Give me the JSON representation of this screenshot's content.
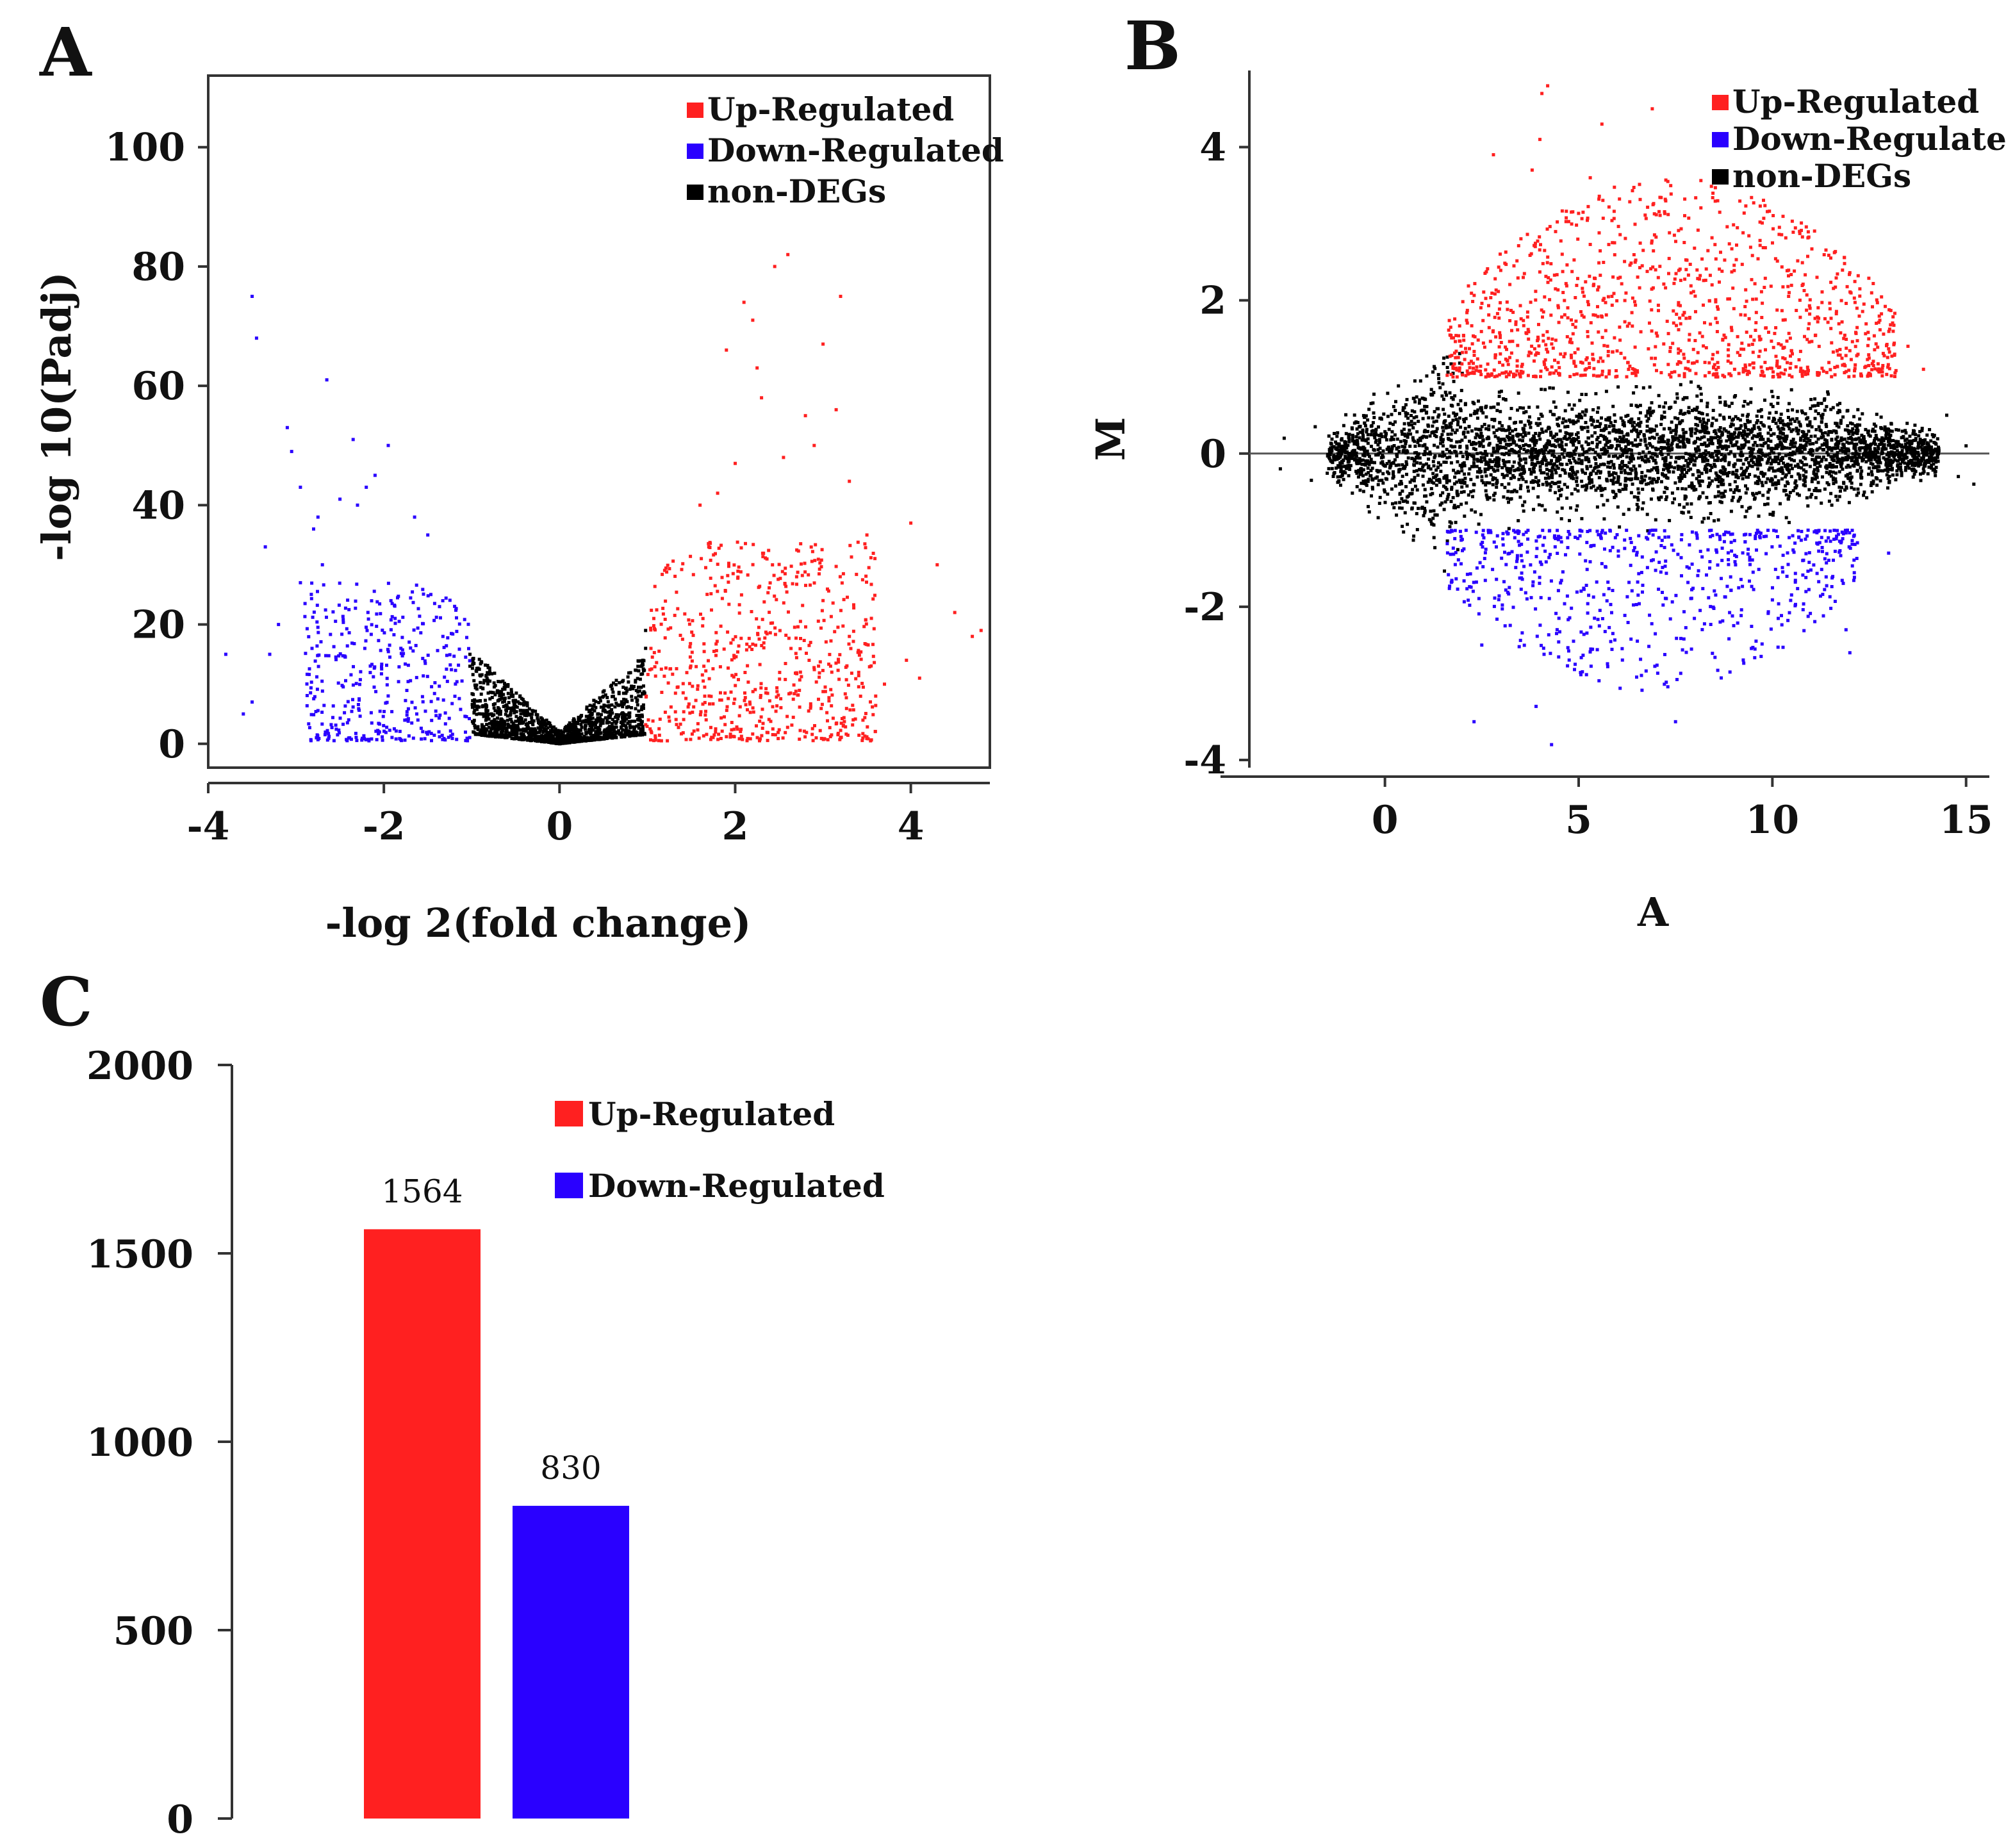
{
  "colors": {
    "up": "#ff2020",
    "down": "#2a00ff",
    "non": "#000000",
    "axis": "#333333"
  },
  "chart_data": [
    {
      "panel": "A",
      "type": "scatter",
      "title": "",
      "xlabel": "-log 2(fold change)",
      "ylabel": "-log 10(Padj)",
      "xlim": [
        -4.0,
        4.9
      ],
      "ylim": [
        -4,
        112
      ],
      "xticks": [
        -4,
        -2,
        0,
        2,
        4
      ],
      "xtick_labels": [
        "-4",
        "-2",
        "0",
        "2",
        "4"
      ],
      "yticks": [
        0,
        20,
        40,
        60,
        80,
        100
      ],
      "ytick_labels": [
        "0",
        "20",
        "40",
        "60",
        "80",
        "100"
      ],
      "legend": [
        {
          "label": "Up-Regulated",
          "color": "#ff2020"
        },
        {
          "label": "Down-Regulated",
          "color": "#2a00ff"
        },
        {
          "label": "non-DEGs",
          "color": "#000000"
        }
      ],
      "legend_position": "top-right",
      "series": [
        {
          "name": "Up-Regulated",
          "color": "#ff2020",
          "points": [
            [
              2.6,
              82
            ],
            [
              2.45,
              80
            ],
            [
              3.2,
              75
            ],
            [
              2.1,
              74
            ],
            [
              2.2,
              71
            ],
            [
              1.9,
              66
            ],
            [
              2.25,
              63
            ],
            [
              3.0,
              67
            ],
            [
              2.3,
              58
            ],
            [
              2.8,
              55
            ],
            [
              3.15,
              56
            ],
            [
              2.9,
              50
            ],
            [
              2.55,
              48
            ],
            [
              3.3,
              44
            ],
            [
              2.0,
              47
            ],
            [
              1.8,
              42
            ],
            [
              4.0,
              37
            ],
            [
              3.5,
              35
            ],
            [
              4.3,
              30
            ],
            [
              4.5,
              22
            ],
            [
              4.8,
              19
            ],
            [
              4.7,
              18
            ],
            [
              3.95,
              14
            ],
            [
              4.1,
              11
            ],
            [
              3.7,
              10
            ],
            [
              3.6,
              8
            ],
            [
              3.0,
              24
            ],
            [
              2.7,
              28
            ],
            [
              1.6,
              40
            ],
            [
              1.7,
              33
            ],
            [
              3.3,
              18
            ],
            [
              3.1,
              12
            ]
          ],
          "cloud": {
            "x": [
              0.98,
              3.6
            ],
            "y": [
              0.5,
              34
            ],
            "count": 620,
            "seed": 11
          }
        },
        {
          "name": "Down-Regulated",
          "color": "#2a00ff",
          "points": [
            [
              -3.5,
              75
            ],
            [
              -3.45,
              68
            ],
            [
              -2.65,
              61
            ],
            [
              -3.1,
              53
            ],
            [
              -3.05,
              49
            ],
            [
              -2.95,
              43
            ],
            [
              -2.35,
              51
            ],
            [
              -1.95,
              50
            ],
            [
              -2.1,
              45
            ],
            [
              -2.2,
              43
            ],
            [
              -2.3,
              40
            ],
            [
              -2.5,
              41
            ],
            [
              -2.75,
              38
            ],
            [
              -2.8,
              36
            ],
            [
              -1.65,
              38
            ],
            [
              -1.5,
              35
            ],
            [
              -3.35,
              33
            ],
            [
              -3.8,
              15
            ],
            [
              -3.5,
              7
            ],
            [
              -3.6,
              5
            ],
            [
              -2.95,
              27
            ],
            [
              -2.7,
              30
            ],
            [
              -3.2,
              20
            ],
            [
              -3.3,
              15
            ]
          ],
          "cloud": {
            "x": [
              -2.9,
              -1.02
            ],
            "y": [
              0.5,
              27
            ],
            "count": 380,
            "seed": 23
          }
        },
        {
          "name": "non-DEGs",
          "color": "#000000",
          "points": [
            [
              -1.02,
              15
            ],
            [
              -1.02,
              13
            ],
            [
              0.98,
              19
            ],
            [
              0.98,
              16
            ],
            [
              0.95,
              14
            ]
          ],
          "cloud": {
            "x": [
              -1.0,
              0.97
            ],
            "y": [
              0,
              16
            ],
            "count": 1400,
            "seed": 5,
            "shape": "v"
          }
        }
      ]
    },
    {
      "panel": "B",
      "type": "scatter",
      "title": "",
      "xlabel": "A",
      "ylabel": "M",
      "xlim": [
        -3.5,
        15.6
      ],
      "ylim": [
        -4.1,
        5.0
      ],
      "xticks": [
        0,
        5,
        10,
        15
      ],
      "xtick_labels": [
        "0",
        "5",
        "10",
        "15"
      ],
      "yticks": [
        -4,
        -2,
        0,
        2,
        4
      ],
      "ytick_labels": [
        "-4",
        "-2",
        "0",
        "2",
        "4"
      ],
      "hline": 0,
      "legend": [
        {
          "label": "Up-Regulated",
          "color": "#ff2020"
        },
        {
          "label": "Down-Regulated",
          "color": "#2a00ff"
        },
        {
          "label": "non-DEGs",
          "color": "#000000"
        }
      ],
      "legend_position": "top-right",
      "series": [
        {
          "name": "Up-Regulated",
          "color": "#ff2020",
          "points": [
            [
              4.2,
              4.8
            ],
            [
              4.05,
              4.7
            ],
            [
              5.6,
              4.3
            ],
            [
              4.0,
              4.1
            ],
            [
              6.9,
              4.5
            ],
            [
              3.8,
              3.7
            ],
            [
              2.8,
              3.9
            ],
            [
              5.3,
              3.6
            ],
            [
              10.7,
              2.9
            ],
            [
              13.5,
              1.4
            ],
            [
              13.9,
              1.1
            ]
          ],
          "cloud": {
            "x": [
              1.6,
              13.2
            ],
            "y": [
              1.0,
              3.6
            ],
            "count": 1100,
            "seed": 31,
            "shape": "mound"
          }
        },
        {
          "name": "Down-Regulated",
          "color": "#2a00ff",
          "points": [
            [
              4.3,
              -3.8
            ],
            [
              2.3,
              -3.5
            ],
            [
              7.5,
              -3.5
            ],
            [
              3.9,
              -3.3
            ],
            [
              12.0,
              -2.6
            ],
            [
              11.9,
              -2.3
            ],
            [
              2.5,
              -2.5
            ],
            [
              13.0,
              -1.3
            ]
          ],
          "cloud": {
            "x": [
              1.6,
              12.2
            ],
            "y": [
              -3.1,
              -1.0
            ],
            "count": 650,
            "seed": 47,
            "shape": "mound"
          }
        },
        {
          "name": "non-DEGs",
          "color": "#000000",
          "points": [
            [
              -2.6,
              0.2
            ],
            [
              -2.7,
              -0.2
            ],
            [
              -1.8,
              0.35
            ],
            [
              -1.9,
              -0.35
            ],
            [
              14.5,
              0.5
            ],
            [
              14.8,
              -0.3
            ],
            [
              15.2,
              -0.4
            ],
            [
              15.0,
              0.1
            ]
          ],
          "cloud": {
            "x": [
              -1.5,
              14.3
            ],
            "y": [
              -1.7,
              1.8
            ],
            "count": 3800,
            "seed": 7,
            "shape": "ma"
          }
        }
      ]
    },
    {
      "panel": "C",
      "type": "bar",
      "title": "",
      "xlabel": "",
      "ylabel": "",
      "categories": [
        "Up-Regulated",
        "Down-Regulated"
      ],
      "values": [
        1564,
        830
      ],
      "value_labels": [
        "1564",
        "830"
      ],
      "colors": [
        "#ff2020",
        "#2a00ff"
      ],
      "ylim": [
        0,
        2000
      ],
      "yticks": [
        0,
        500,
        1000,
        1500,
        2000
      ],
      "ytick_labels": [
        "0",
        "500",
        "1000",
        "1500",
        "2000"
      ],
      "legend": [
        {
          "label": "Up-Regulated",
          "color": "#ff2020"
        },
        {
          "label": "Down-Regulated",
          "color": "#2a00ff"
        }
      ],
      "legend_position": "top-center"
    }
  ]
}
